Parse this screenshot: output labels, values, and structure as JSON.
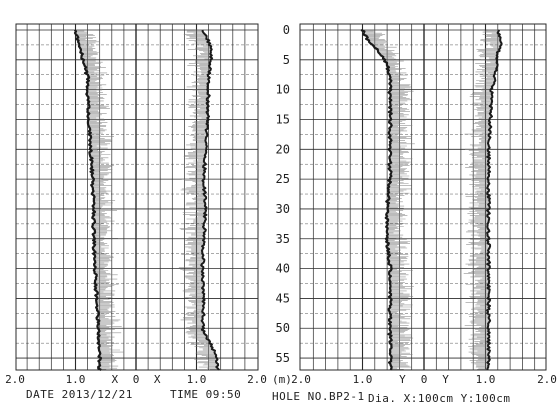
{
  "chart_data": {
    "type": "line",
    "depth_axis": {
      "ticks": [
        "0",
        "5",
        "10",
        "15",
        "20",
        "25",
        "30",
        "35",
        "40",
        "45",
        "50",
        "55"
      ],
      "values": [
        0,
        5,
        10,
        15,
        20,
        25,
        30,
        35,
        40,
        45,
        50,
        55
      ],
      "range": [
        0,
        57
      ],
      "unit_label": "(m)"
    },
    "left_scale": {
      "ticks": [
        "2.0",
        "1.0",
        "X",
        "0",
        "X",
        "1.0",
        "2.0"
      ]
    },
    "right_scale": {
      "ticks": [
        "2.0",
        "1.0",
        "Y",
        "0",
        "Y",
        "1.0",
        "2.0"
      ]
    },
    "colors": {
      "ink": "#1a1a1a",
      "grid": "#2a2a2a",
      "noise": "#7a7a7a",
      "paper": "#ffffff"
    },
    "panels": [
      {
        "side": "left",
        "series": [
          {
            "axis": "X",
            "depth": [
              0,
              2,
              4,
              6,
              8,
              10,
              15,
              20,
              25,
              30,
              35,
              40,
              45,
              50,
              52,
              54,
              56
            ],
            "values": [
              1.0,
              0.95,
              0.9,
              0.85,
              0.8,
              0.8,
              0.78,
              0.75,
              0.72,
              0.7,
              0.7,
              0.68,
              0.65,
              0.62,
              0.62,
              0.6,
              0.6
            ]
          },
          {
            "axis": "X'",
            "depth": [
              0,
              2,
              4,
              6,
              8,
              10,
              15,
              20,
              25,
              30,
              35,
              40,
              45,
              50,
              52,
              54,
              56
            ],
            "values": [
              1.1,
              1.2,
              1.25,
              1.22,
              1.2,
              1.2,
              1.18,
              1.15,
              1.12,
              1.15,
              1.12,
              1.1,
              1.12,
              1.1,
              1.2,
              1.3,
              1.35
            ]
          }
        ]
      },
      {
        "side": "right",
        "series": [
          {
            "axis": "Y",
            "depth": [
              0,
              2,
              4,
              6,
              8,
              10,
              15,
              20,
              25,
              30,
              35,
              40,
              45,
              50,
              52,
              54,
              56
            ],
            "values": [
              1.0,
              0.9,
              0.7,
              0.6,
              0.55,
              0.55,
              0.55,
              0.55,
              0.55,
              0.6,
              0.6,
              0.55,
              0.55,
              0.55,
              0.55,
              0.55,
              0.55
            ]
          },
          {
            "axis": "Y'",
            "depth": [
              0,
              2,
              4,
              6,
              8,
              10,
              15,
              20,
              25,
              30,
              35,
              40,
              45,
              50,
              52,
              54,
              56
            ],
            "values": [
              1.2,
              1.25,
              1.2,
              1.18,
              1.15,
              1.1,
              1.08,
              1.05,
              1.05,
              1.05,
              1.05,
              1.05,
              1.05,
              1.05,
              1.05,
              1.05,
              1.05
            ]
          }
        ]
      }
    ]
  },
  "caption": {
    "date": "DATE  2013/12/21",
    "time": "TIME  09:50",
    "hole": "HOLE NO.BP2-1",
    "dia": "Dia. X:100cm Y:100cm"
  }
}
